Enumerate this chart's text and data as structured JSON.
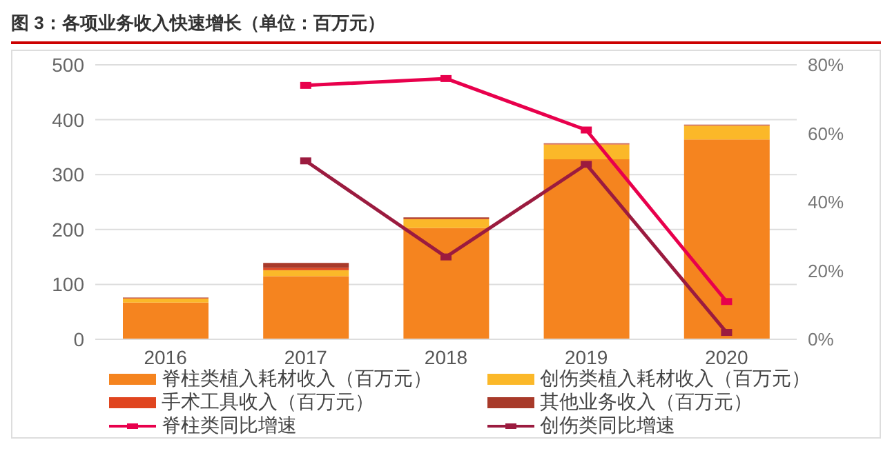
{
  "chart_data": {
    "type": "bar",
    "title": "图 3：各项业务收入快速增长（单位：百万元）",
    "categories": [
      "2016",
      "2017",
      "2018",
      "2019",
      "2020"
    ],
    "stacked": true,
    "series": [
      {
        "name": "脊柱类植入耗材收入（百万元）",
        "color": "#f5841f",
        "values": [
          67,
          115,
          203,
          328,
          364
        ]
      },
      {
        "name": "创伤类植入耗材收入（百万元）",
        "color": "#fbb829",
        "values": [
          7,
          11,
          16,
          27,
          25
        ]
      },
      {
        "name": "手术工具收入（百万元）",
        "color": "#e0451f",
        "values": [
          1,
          4,
          1,
          1,
          1
        ]
      },
      {
        "name": "其他业务收入（百万元）",
        "color": "#a83a2a",
        "values": [
          1,
          9,
          2,
          1,
          1
        ]
      },
      {
        "name": "脊柱类同比增速",
        "type": "line",
        "axis": "y2",
        "color": "#e8004c",
        "values": [
          null,
          74,
          76,
          61,
          11
        ]
      },
      {
        "name": "创伤类同比增速",
        "type": "line",
        "axis": "y2",
        "color": "#9b1b3f",
        "values": [
          null,
          52,
          24,
          51,
          2
        ]
      }
    ],
    "ylim": [
      0,
      500
    ],
    "yticks": [
      0,
      100,
      200,
      300,
      400,
      500
    ],
    "y2lim": [
      0,
      80
    ],
    "y2ticks": [
      {
        "value": 0,
        "label": "0%"
      },
      {
        "value": 20,
        "label": "20%"
      },
      {
        "value": 40,
        "label": "40%"
      },
      {
        "value": 60,
        "label": "60%"
      },
      {
        "value": 80,
        "label": "80%"
      }
    ],
    "grid": "y",
    "legend": "bottom",
    "marker": "square",
    "line_style": "solid"
  }
}
